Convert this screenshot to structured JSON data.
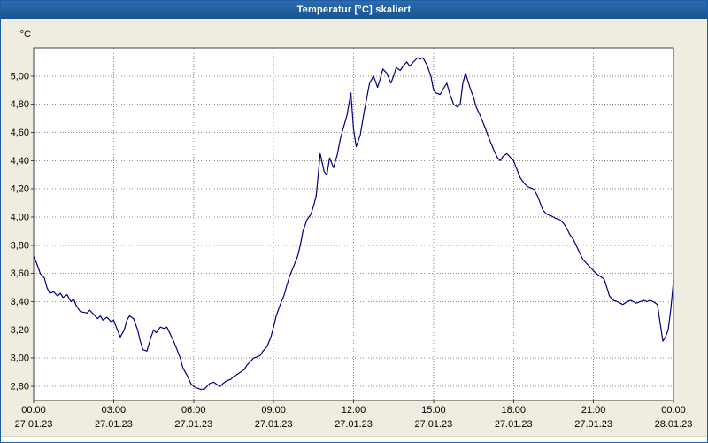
{
  "window": {
    "title": "Temperatur [°C] skaliert"
  },
  "chart_data": {
    "type": "line",
    "title": "Temperatur [°C] skaliert",
    "xlabel": "",
    "ylabel": "°C",
    "xlim": [
      0,
      24
    ],
    "ylim": [
      2.7,
      5.2
    ],
    "grid": "dotted",
    "legend": "none",
    "colors": {
      "titlebar": "#1B5EA6",
      "titlebar_text": "#FFFFFF",
      "window_bg": "#EFEDE0",
      "plot_bg": "#FFFFFF",
      "grid": "#8A8A8A",
      "line": "#000080",
      "axis": "#404040",
      "text": "#000000"
    },
    "y_axis": {
      "unit_label": "°C",
      "ticks": [
        {
          "label": "5,00",
          "value": 5.0
        },
        {
          "label": "4,80",
          "value": 4.8
        },
        {
          "label": "4,60",
          "value": 4.6
        },
        {
          "label": "4,40",
          "value": 4.4
        },
        {
          "label": "4,20",
          "value": 4.2
        },
        {
          "label": "4,00",
          "value": 4.0
        },
        {
          "label": "3,80",
          "value": 3.8
        },
        {
          "label": "3,60",
          "value": 3.6
        },
        {
          "label": "3,40",
          "value": 3.4
        },
        {
          "label": "3,20",
          "value": 3.2
        },
        {
          "label": "3,00",
          "value": 3.0
        },
        {
          "label": "2,80",
          "value": 2.8
        }
      ]
    },
    "x_axis": {
      "ticks": [
        {
          "hour": 0,
          "time": "00:00",
          "date": "27.01.23"
        },
        {
          "hour": 3,
          "time": "03:00",
          "date": "27.01.23"
        },
        {
          "hour": 6,
          "time": "06:00",
          "date": "27.01.23"
        },
        {
          "hour": 9,
          "time": "09:00",
          "date": "27.01.23"
        },
        {
          "hour": 12,
          "time": "12:00",
          "date": "27.01.23"
        },
        {
          "hour": 15,
          "time": "15:00",
          "date": "27.01.23"
        },
        {
          "hour": 18,
          "time": "18:00",
          "date": "27.01.23"
        },
        {
          "hour": 21,
          "time": "21:00",
          "date": "27.01.23"
        },
        {
          "hour": 24,
          "time": "00:00",
          "date": "28.01.23"
        }
      ]
    },
    "series": [
      {
        "name": "Temperatur",
        "points": [
          [
            0,
            3.72
          ],
          [
            0.1,
            3.68
          ],
          [
            0.25,
            3.6
          ],
          [
            0.4,
            3.57
          ],
          [
            0.5,
            3.5
          ],
          [
            0.6,
            3.46
          ],
          [
            0.75,
            3.47
          ],
          [
            0.9,
            3.44
          ],
          [
            1,
            3.46
          ],
          [
            1.1,
            3.43
          ],
          [
            1.25,
            3.45
          ],
          [
            1.4,
            3.4
          ],
          [
            1.5,
            3.42
          ],
          [
            1.6,
            3.37
          ],
          [
            1.75,
            3.33
          ],
          [
            2,
            3.32
          ],
          [
            2.1,
            3.34
          ],
          [
            2.25,
            3.31
          ],
          [
            2.4,
            3.28
          ],
          [
            2.5,
            3.3
          ],
          [
            2.6,
            3.27
          ],
          [
            2.75,
            3.29
          ],
          [
            2.9,
            3.26
          ],
          [
            3,
            3.27
          ],
          [
            3.1,
            3.22
          ],
          [
            3.25,
            3.15
          ],
          [
            3.4,
            3.2
          ],
          [
            3.5,
            3.27
          ],
          [
            3.6,
            3.3
          ],
          [
            3.75,
            3.28
          ],
          [
            3.9,
            3.2
          ],
          [
            4,
            3.12
          ],
          [
            4.1,
            3.06
          ],
          [
            4.25,
            3.05
          ],
          [
            4.4,
            3.15
          ],
          [
            4.5,
            3.2
          ],
          [
            4.6,
            3.18
          ],
          [
            4.75,
            3.22
          ],
          [
            4.9,
            3.21
          ],
          [
            5,
            3.22
          ],
          [
            5.1,
            3.18
          ],
          [
            5.25,
            3.12
          ],
          [
            5.4,
            3.05
          ],
          [
            5.5,
            3.0
          ],
          [
            5.6,
            2.93
          ],
          [
            5.75,
            2.88
          ],
          [
            5.9,
            2.82
          ],
          [
            6,
            2.8
          ],
          [
            6.1,
            2.79
          ],
          [
            6.25,
            2.78
          ],
          [
            6.4,
            2.78
          ],
          [
            6.5,
            2.8
          ],
          [
            6.6,
            2.82
          ],
          [
            6.75,
            2.83
          ],
          [
            6.9,
            2.81
          ],
          [
            7,
            2.8
          ],
          [
            7.1,
            2.82
          ],
          [
            7.25,
            2.84
          ],
          [
            7.4,
            2.85
          ],
          [
            7.5,
            2.87
          ],
          [
            7.6,
            2.88
          ],
          [
            7.75,
            2.9
          ],
          [
            7.9,
            2.92
          ],
          [
            8,
            2.95
          ],
          [
            8.1,
            2.97
          ],
          [
            8.25,
            3.0
          ],
          [
            8.4,
            3.01
          ],
          [
            8.5,
            3.02
          ],
          [
            8.6,
            3.05
          ],
          [
            8.75,
            3.08
          ],
          [
            8.9,
            3.15
          ],
          [
            9,
            3.22
          ],
          [
            9.1,
            3.3
          ],
          [
            9.25,
            3.38
          ],
          [
            9.4,
            3.45
          ],
          [
            9.5,
            3.52
          ],
          [
            9.6,
            3.58
          ],
          [
            9.75,
            3.65
          ],
          [
            9.9,
            3.72
          ],
          [
            10,
            3.8
          ],
          [
            10.1,
            3.9
          ],
          [
            10.25,
            3.98
          ],
          [
            10.4,
            4.02
          ],
          [
            10.5,
            4.08
          ],
          [
            10.6,
            4.15
          ],
          [
            10.75,
            4.45
          ],
          [
            10.9,
            4.32
          ],
          [
            11,
            4.3
          ],
          [
            11.1,
            4.42
          ],
          [
            11.25,
            4.35
          ],
          [
            11.4,
            4.45
          ],
          [
            11.5,
            4.55
          ],
          [
            11.6,
            4.62
          ],
          [
            11.75,
            4.72
          ],
          [
            11.9,
            4.88
          ],
          [
            12,
            4.62
          ],
          [
            12.1,
            4.5
          ],
          [
            12.25,
            4.58
          ],
          [
            12.4,
            4.75
          ],
          [
            12.5,
            4.85
          ],
          [
            12.6,
            4.95
          ],
          [
            12.75,
            5.0
          ],
          [
            12.9,
            4.92
          ],
          [
            13,
            4.98
          ],
          [
            13.1,
            5.05
          ],
          [
            13.25,
            5.02
          ],
          [
            13.4,
            4.95
          ],
          [
            13.5,
            5.0
          ],
          [
            13.6,
            5.06
          ],
          [
            13.75,
            5.04
          ],
          [
            13.9,
            5.08
          ],
          [
            14,
            5.1
          ],
          [
            14.1,
            5.07
          ],
          [
            14.25,
            5.1
          ],
          [
            14.4,
            5.13
          ],
          [
            14.5,
            5.12
          ],
          [
            14.6,
            5.13
          ],
          [
            14.75,
            5.08
          ],
          [
            14.9,
            5.0
          ],
          [
            15,
            4.9
          ],
          [
            15.1,
            4.88
          ],
          [
            15.25,
            4.87
          ],
          [
            15.4,
            4.92
          ],
          [
            15.5,
            4.95
          ],
          [
            15.6,
            4.88
          ],
          [
            15.75,
            4.8
          ],
          [
            15.9,
            4.78
          ],
          [
            16,
            4.8
          ],
          [
            16.1,
            4.95
          ],
          [
            16.2,
            5.02
          ],
          [
            16.4,
            4.9
          ],
          [
            16.5,
            4.85
          ],
          [
            16.6,
            4.78
          ],
          [
            16.75,
            4.72
          ],
          [
            16.9,
            4.65
          ],
          [
            17,
            4.6
          ],
          [
            17.1,
            4.55
          ],
          [
            17.25,
            4.48
          ],
          [
            17.4,
            4.42
          ],
          [
            17.5,
            4.4
          ],
          [
            17.6,
            4.43
          ],
          [
            17.75,
            4.45
          ],
          [
            17.9,
            4.42
          ],
          [
            18,
            4.4
          ],
          [
            18.1,
            4.35
          ],
          [
            18.25,
            4.28
          ],
          [
            18.4,
            4.24
          ],
          [
            18.5,
            4.22
          ],
          [
            18.6,
            4.21
          ],
          [
            18.75,
            4.2
          ],
          [
            18.9,
            4.15
          ],
          [
            19,
            4.1
          ],
          [
            19.1,
            4.05
          ],
          [
            19.25,
            4.02
          ],
          [
            19.4,
            4.01
          ],
          [
            19.5,
            4.0
          ],
          [
            19.6,
            3.99
          ],
          [
            19.75,
            3.98
          ],
          [
            19.9,
            3.95
          ],
          [
            20,
            3.92
          ],
          [
            20.1,
            3.88
          ],
          [
            20.25,
            3.84
          ],
          [
            20.4,
            3.78
          ],
          [
            20.5,
            3.74
          ],
          [
            20.6,
            3.7
          ],
          [
            20.75,
            3.67
          ],
          [
            20.9,
            3.64
          ],
          [
            21,
            3.62
          ],
          [
            21.1,
            3.6
          ],
          [
            21.25,
            3.58
          ],
          [
            21.4,
            3.56
          ],
          [
            21.5,
            3.5
          ],
          [
            21.6,
            3.44
          ],
          [
            21.75,
            3.41
          ],
          [
            21.9,
            3.4
          ],
          [
            22,
            3.39
          ],
          [
            22.1,
            3.38
          ],
          [
            22.25,
            3.4
          ],
          [
            22.4,
            3.41
          ],
          [
            22.5,
            3.4
          ],
          [
            22.6,
            3.39
          ],
          [
            22.75,
            3.4
          ],
          [
            22.9,
            3.41
          ],
          [
            23,
            3.4
          ],
          [
            23.1,
            3.41
          ],
          [
            23.25,
            3.4
          ],
          [
            23.4,
            3.38
          ],
          [
            23.5,
            3.25
          ],
          [
            23.6,
            3.12
          ],
          [
            23.7,
            3.15
          ],
          [
            23.8,
            3.2
          ],
          [
            23.9,
            3.35
          ],
          [
            24,
            3.55
          ]
        ]
      }
    ]
  }
}
